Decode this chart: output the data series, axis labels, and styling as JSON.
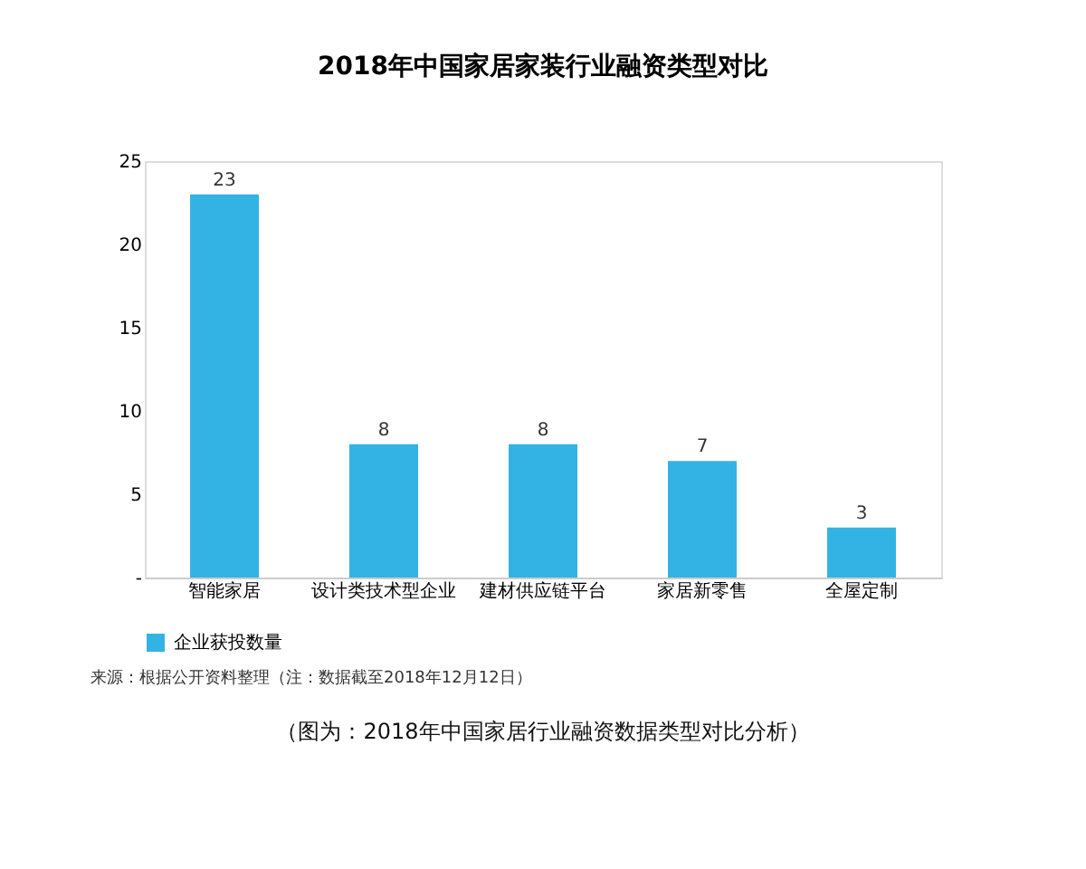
{
  "chart_data": {
    "type": "bar",
    "title": "2018年中国家居家装行业融资类型对比",
    "categories": [
      "智能家居",
      "设计类技术型企业",
      "建材供应链平台",
      "家居新零售",
      "全屋定制"
    ],
    "series": [
      {
        "name": "企业获投数量",
        "color": "#33b3e3",
        "values": [
          23,
          8,
          8,
          7,
          3
        ]
      }
    ],
    "ylim": [
      0,
      25
    ],
    "yticks": [
      {
        "value": 0,
        "label": "-"
      },
      5,
      10,
      15,
      20,
      25
    ],
    "data_labels": true,
    "legend": "bottom",
    "grid": false,
    "annotations": [
      "来源：根据公开资料整理（注：数据截至2018年12月12日）",
      "（图为：2018年中国家居行业融资数据类型对比分析）"
    ]
  }
}
